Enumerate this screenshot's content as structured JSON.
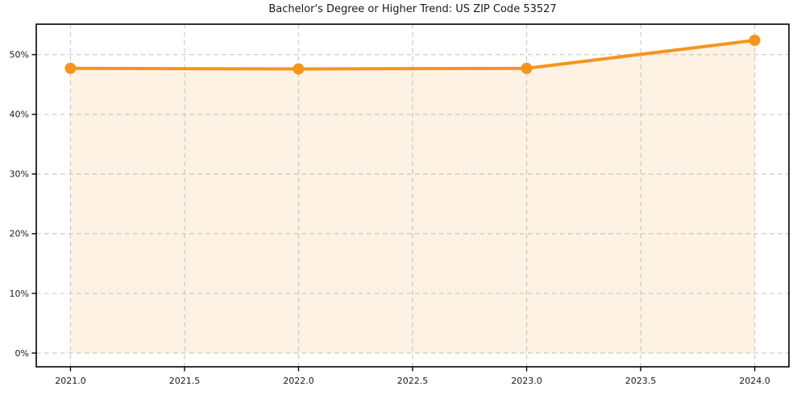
{
  "chart_data": {
    "type": "line",
    "title": "Bachelor's Degree or Higher Trend: US ZIP Code 53527",
    "x": [
      2021,
      2022,
      2023,
      2024
    ],
    "values": [
      47.7,
      47.6,
      47.7,
      52.4
    ],
    "xlim": [
      2020.85,
      2024.15
    ],
    "ylim": [
      -2.3,
      55.1
    ],
    "x_ticks": {
      "values": [
        2021.0,
        2021.5,
        2022.0,
        2022.5,
        2023.0,
        2023.5,
        2024.0
      ],
      "labels": [
        "2021.0",
        "2021.5",
        "2022.0",
        "2022.5",
        "2023.0",
        "2023.5",
        "2024.0"
      ]
    },
    "y_ticks": {
      "values": [
        0,
        10,
        20,
        30,
        40,
        50
      ],
      "labels": [
        "0%",
        "10%",
        "20%",
        "30%",
        "40%",
        "50%"
      ]
    },
    "grid": true,
    "grid_style": "dashed",
    "legend_position": "none",
    "marker": "circle",
    "fill_to_zero": true,
    "colors": {
      "line": "#f7941d",
      "fill": "#f7941d",
      "fill_alpha": 0.12,
      "grid": "#cbcbcb",
      "spine": "#000000",
      "text": "#1a1a1a",
      "background": "#ffffff"
    }
  }
}
